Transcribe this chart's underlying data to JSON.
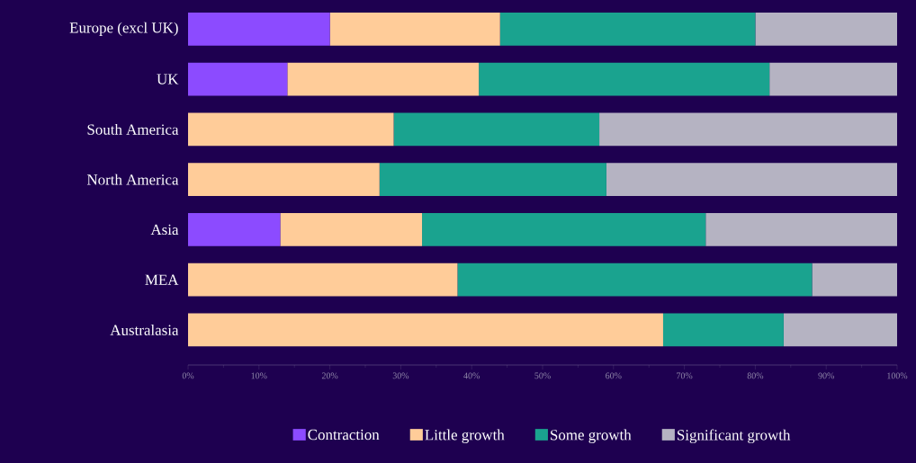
{
  "chart_data": {
    "type": "bar",
    "orientation": "horizontal",
    "stacked": true,
    "categories": [
      "Europe (excl UK)",
      "UK",
      "South America",
      "North America",
      "Asia",
      "MEA",
      "Australasia"
    ],
    "series": [
      {
        "name": "Contraction",
        "color": "#8c4bff",
        "values": [
          20,
          14,
          0,
          0,
          13,
          0,
          0
        ]
      },
      {
        "name": "Little growth",
        "color": "#ffcc99",
        "values": [
          24,
          27,
          29,
          27,
          20,
          38,
          67
        ]
      },
      {
        "name": "Some growth",
        "color": "#1aa38f",
        "values": [
          36,
          41,
          29,
          32,
          40,
          50,
          17
        ]
      },
      {
        "name": "Significant growth",
        "color": "#b5b3c2",
        "values": [
          20,
          18,
          42,
          41,
          27,
          12,
          16
        ]
      }
    ],
    "xlim": [
      0,
      100
    ],
    "xticks": [
      {
        "value": 0,
        "label": "0%"
      },
      {
        "value": 10,
        "label": "10%"
      },
      {
        "value": 20,
        "label": "20%"
      },
      {
        "value": 30,
        "label": "30%"
      },
      {
        "value": 40,
        "label": "40%"
      },
      {
        "value": 50,
        "label": "50%"
      },
      {
        "value": 60,
        "label": "60%"
      },
      {
        "value": 70,
        "label": "70%"
      },
      {
        "value": 80,
        "label": "80%"
      },
      {
        "value": 90,
        "label": "90%"
      },
      {
        "value": 100,
        "label": "100%"
      }
    ],
    "grid": false,
    "legend": "bottom"
  }
}
